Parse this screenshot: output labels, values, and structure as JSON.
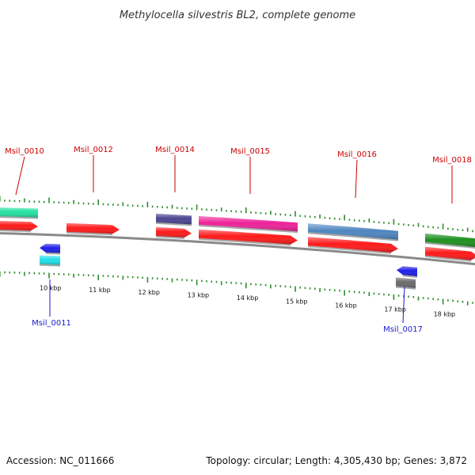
{
  "title": "Methylocella silvestris BL2, complete genome",
  "footer": {
    "accession": "Accession: NC_011666",
    "summary": "Topology: circular; Length: 4,305,430 bp; Genes: 3,872"
  },
  "colors": {
    "backbone": "#8a8a8a",
    "tick": "#2e8b2e",
    "label_forward": "#cc0000",
    "label_reverse": "#1a1acc"
  },
  "scale": {
    "unit": "kbp",
    "labels": [
      "10 kbp",
      "11 kbp",
      "12 kbp",
      "13 kbp",
      "14 kbp",
      "15 kbp",
      "16 kbp",
      "17 kbp",
      "18 kbp"
    ]
  },
  "gene_labels": [
    {
      "name": "Msil_0010",
      "strand": "forward"
    },
    {
      "name": "Msil_0012",
      "strand": "forward"
    },
    {
      "name": "Msil_0014",
      "strand": "forward"
    },
    {
      "name": "Msil_0015",
      "strand": "forward"
    },
    {
      "name": "Msil_0016",
      "strand": "forward"
    },
    {
      "name": "Msil_0018",
      "strand": "forward"
    },
    {
      "name": "Msil_0011",
      "strand": "reverse"
    },
    {
      "name": "Msil_0017",
      "strand": "reverse"
    }
  ],
  "feature_colors": {
    "cds": "#ff1a1a",
    "reverse_cds": "#1f1fe6",
    "mint": "#22e0a0",
    "cyan": "#1fe0e8",
    "navy": "#4a4590",
    "magenta": "#ee2299",
    "steelblue": "#4f86c0",
    "green": "#1f8f1f",
    "gray": "#6a6a6a"
  }
}
